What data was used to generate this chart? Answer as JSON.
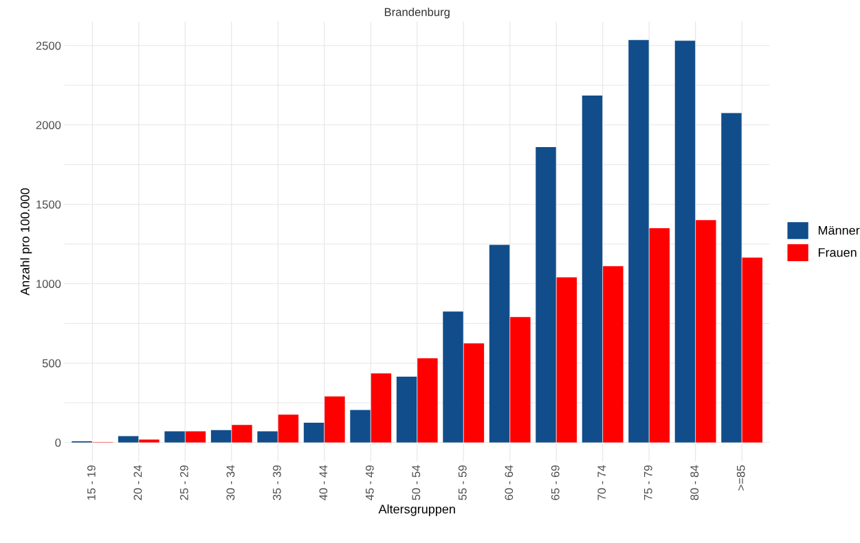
{
  "chart_data": {
    "type": "bar",
    "title": "Brandenburg",
    "xlabel": "Altersgruppen",
    "ylabel": "Anzahl pro 100.000",
    "categories": [
      "15 - 19",
      "20 - 24",
      "25 - 29",
      "30 - 34",
      "35 - 39",
      "40 - 44",
      "45 - 49",
      "50 - 54",
      "55 - 59",
      "60 - 64",
      "65 - 69",
      "70 - 74",
      "75 - 79",
      "80 - 84",
      ">=85"
    ],
    "series": [
      {
        "name": "Männer",
        "color": "#114d8a",
        "values": [
          8,
          40,
          70,
          78,
          70,
          125,
          205,
          415,
          825,
          1245,
          1860,
          2185,
          2535,
          2530,
          2075
        ]
      },
      {
        "name": "Frauen",
        "color": "#ff0000",
        "values": [
          2,
          18,
          70,
          110,
          175,
          290,
          435,
          530,
          625,
          790,
          1040,
          1110,
          1350,
          1400,
          1165
        ]
      }
    ],
    "ylim": [
      -120,
      2650
    ],
    "yticks": [
      0,
      {
        "value": 250,
        "label": null
      },
      500,
      {
        "value": 750,
        "label": null
      },
      1000,
      {
        "value": 1250,
        "label": null
      },
      1500,
      {
        "value": 1750,
        "label": null
      },
      2000,
      {
        "value": 2250,
        "label": null
      },
      2500
    ],
    "grid": true,
    "legend": "right"
  }
}
